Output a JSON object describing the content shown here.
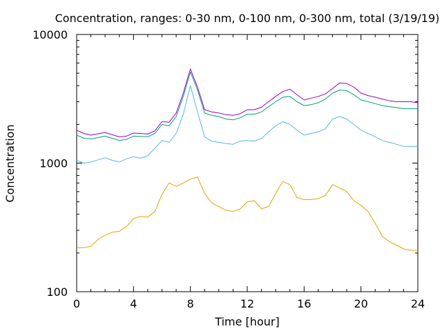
{
  "chart_data": {
    "type": "line",
    "title": "Concentration, ranges: 0-30 nm, 0-100 nm, 0-300 nm, total (3/19/19)",
    "xlabel": "Time [hour]",
    "ylabel": "Concentration",
    "xlim": [
      0,
      24
    ],
    "ylim": [
      100,
      10000
    ],
    "yscale": "log",
    "grid": false,
    "legend": "none",
    "x_ticks": [
      0,
      4,
      8,
      12,
      16,
      20,
      24
    ],
    "y_ticks": [
      100,
      1000,
      10000
    ],
    "x": [
      0,
      0.5,
      1,
      1.5,
      2,
      2.5,
      3,
      3.5,
      4,
      4.5,
      5,
      5.5,
      6,
      6.5,
      7,
      7.5,
      8,
      8.5,
      9,
      9.5,
      10,
      10.5,
      11,
      11.5,
      12,
      12.5,
      13,
      13.5,
      14,
      14.5,
      15,
      15.5,
      16,
      16.5,
      17,
      17.5,
      18,
      18.5,
      19,
      19.5,
      20,
      20.5,
      21,
      21.5,
      22,
      22.5,
      23,
      23.5,
      24
    ],
    "series": [
      {
        "color": "#e69f00",
        "values": [
          220,
          220,
          225,
          255,
          275,
          290,
          295,
          320,
          370,
          385,
          380,
          420,
          570,
          700,
          660,
          700,
          750,
          780,
          580,
          490,
          460,
          430,
          420,
          440,
          500,
          510,
          440,
          460,
          580,
          720,
          680,
          540,
          520,
          520,
          530,
          560,
          680,
          640,
          600,
          510,
          470,
          420,
          340,
          270,
          245,
          230,
          215,
          210,
          210
        ]
      },
      {
        "color": "#56b4e9",
        "values": [
          1050,
          1000,
          1020,
          1060,
          1100,
          1050,
          1020,
          1080,
          1120,
          1090,
          1140,
          1300,
          1500,
          1450,
          1700,
          2400,
          4000,
          2500,
          1600,
          1480,
          1450,
          1420,
          1400,
          1480,
          1500,
          1480,
          1550,
          1750,
          1950,
          2100,
          2000,
          1800,
          1650,
          1700,
          1750,
          1850,
          2200,
          2300,
          2200,
          2000,
          1800,
          1700,
          1600,
          1500,
          1450,
          1400,
          1350,
          1350,
          1350
        ]
      },
      {
        "color": "#009e73",
        "values": [
          1650,
          1560,
          1540,
          1580,
          1620,
          1560,
          1500,
          1530,
          1620,
          1610,
          1600,
          1700,
          2000,
          1950,
          2300,
          3300,
          5100,
          3700,
          2450,
          2350,
          2300,
          2200,
          2170,
          2250,
          2400,
          2400,
          2500,
          2750,
          3000,
          3250,
          3300,
          3000,
          2800,
          2850,
          2950,
          3150,
          3500,
          3700,
          3650,
          3400,
          3100,
          3000,
          2900,
          2800,
          2750,
          2700,
          2650,
          2650,
          2650
        ]
      },
      {
        "color": "#9400d3",
        "values": [
          1800,
          1700,
          1650,
          1690,
          1730,
          1660,
          1600,
          1620,
          1710,
          1700,
          1680,
          1780,
          2100,
          2080,
          2450,
          3500,
          5400,
          3900,
          2600,
          2500,
          2450,
          2380,
          2350,
          2420,
          2600,
          2600,
          2720,
          3000,
          3300,
          3600,
          3750,
          3400,
          3100,
          3200,
          3300,
          3450,
          3800,
          4200,
          4150,
          3900,
          3500,
          3350,
          3250,
          3150,
          3050,
          3000,
          3000,
          3000,
          2950
        ]
      }
    ]
  }
}
